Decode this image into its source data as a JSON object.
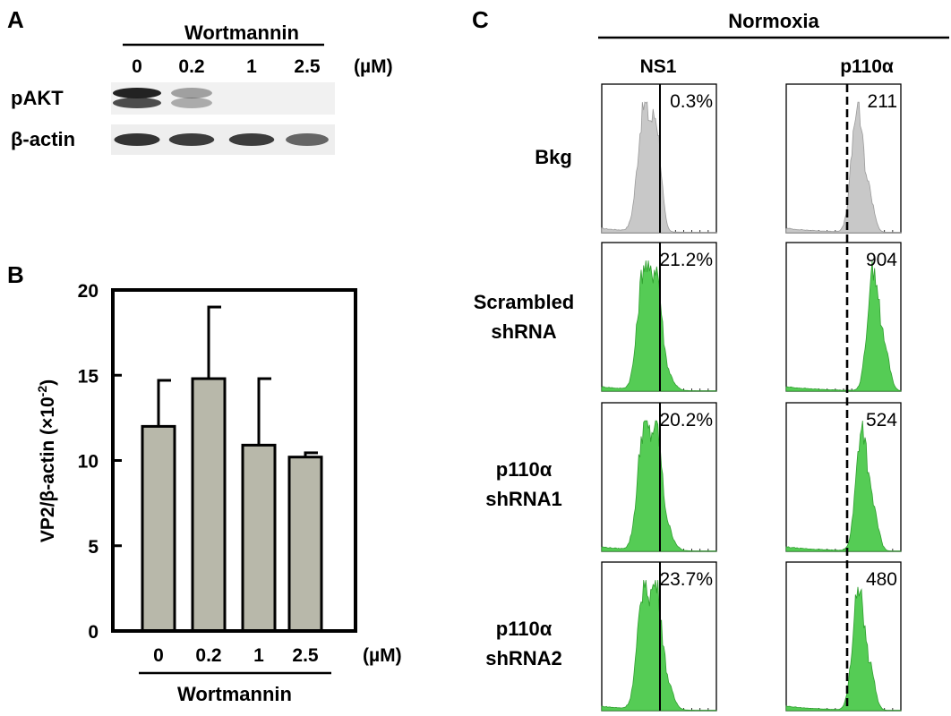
{
  "panel_a": {
    "letter": "A",
    "treatment": "Wortmannin",
    "unit": "(µM)",
    "doses": [
      "0",
      "0.2",
      "1",
      "2.5"
    ],
    "rows": [
      {
        "label": "pAKT",
        "intensities": [
          1.0,
          0.25,
          0.0,
          0.0
        ]
      },
      {
        "label": "β-actin",
        "intensities": [
          0.9,
          0.85,
          0.85,
          0.6
        ]
      }
    ]
  },
  "panel_b": {
    "letter": "B",
    "xunit": "(µM)",
    "xgroup": "Wortmannin",
    "ylabel_main": "VP2/β-actin (×10",
    "ylabel_sup": "-2",
    "ylabel_end": ")"
  },
  "chart_data": {
    "type": "bar",
    "categories": [
      "0",
      "0.2",
      "1",
      "2.5"
    ],
    "values": [
      12.0,
      14.8,
      10.9,
      10.2
    ],
    "errors": [
      2.7,
      4.2,
      3.9,
      0.25
    ],
    "ylim": [
      0,
      20
    ],
    "yticks": [
      "0",
      "5",
      "10",
      "15",
      "20"
    ],
    "bar_color": "#b8b8aa",
    "xlabel": "",
    "ylabel": "VP2/β-actin (×10-2)",
    "title": ""
  },
  "panel_c": {
    "letter": "C",
    "condition": "Normoxia",
    "columns": [
      "NS1",
      "p110α"
    ],
    "rows": [
      {
        "label": [
          "Bkg"
        ],
        "ns1_value": "0.3%",
        "p110a_value": "211",
        "color": "#c8c8c8",
        "ns1_second_peak": 0.0,
        "p110a_center": 0.68
      },
      {
        "label": [
          "Scrambled",
          "shRNA"
        ],
        "ns1_value": "21.2%",
        "p110a_value": "904",
        "color": "#55cc55",
        "ns1_second_peak": 0.17,
        "p110a_center": 0.82
      },
      {
        "label": [
          "p110α",
          "shRNA1"
        ],
        "ns1_value": "20.2%",
        "p110a_value": "524",
        "color": "#55cc55",
        "ns1_second_peak": 0.22,
        "p110a_center": 0.72
      },
      {
        "label": [
          "p110α",
          "shRNA2"
        ],
        "ns1_value": "23.7%",
        "p110a_value": "480",
        "color": "#55cc55",
        "ns1_second_peak": 0.25,
        "p110a_center": 0.69
      }
    ]
  }
}
